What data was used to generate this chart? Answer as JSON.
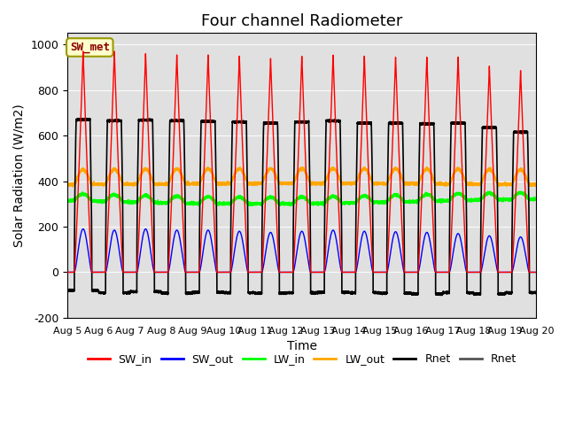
{
  "title": "Four channel Radiometer",
  "xlabel": "Time",
  "ylabel": "Solar Radiation (W/m2)",
  "ylim": [
    -200,
    1050
  ],
  "xlim": [
    0,
    15
  ],
  "x_tick_labels": [
    "Aug 5",
    "Aug 6",
    "Aug 7",
    "Aug 8",
    "Aug 9",
    "Aug 10",
    "Aug 11",
    "Aug 12",
    "Aug 13",
    "Aug 14",
    "Aug 15",
    "Aug 16",
    "Aug 17",
    "Aug 18",
    "Aug 19",
    "Aug 20"
  ],
  "background_color": "#e0e0e0",
  "legend_entries": [
    "SW_in",
    "SW_out",
    "LW_in",
    "LW_out",
    "Rnet",
    "Rnet"
  ],
  "legend_colors": [
    "red",
    "blue",
    "lime",
    "orange",
    "black",
    "#555555"
  ],
  "annotation_text": "SW_met",
  "annotation_bg": "#ffffcc",
  "annotation_border": "#999900",
  "n_days": 15,
  "title_fontsize": 13
}
